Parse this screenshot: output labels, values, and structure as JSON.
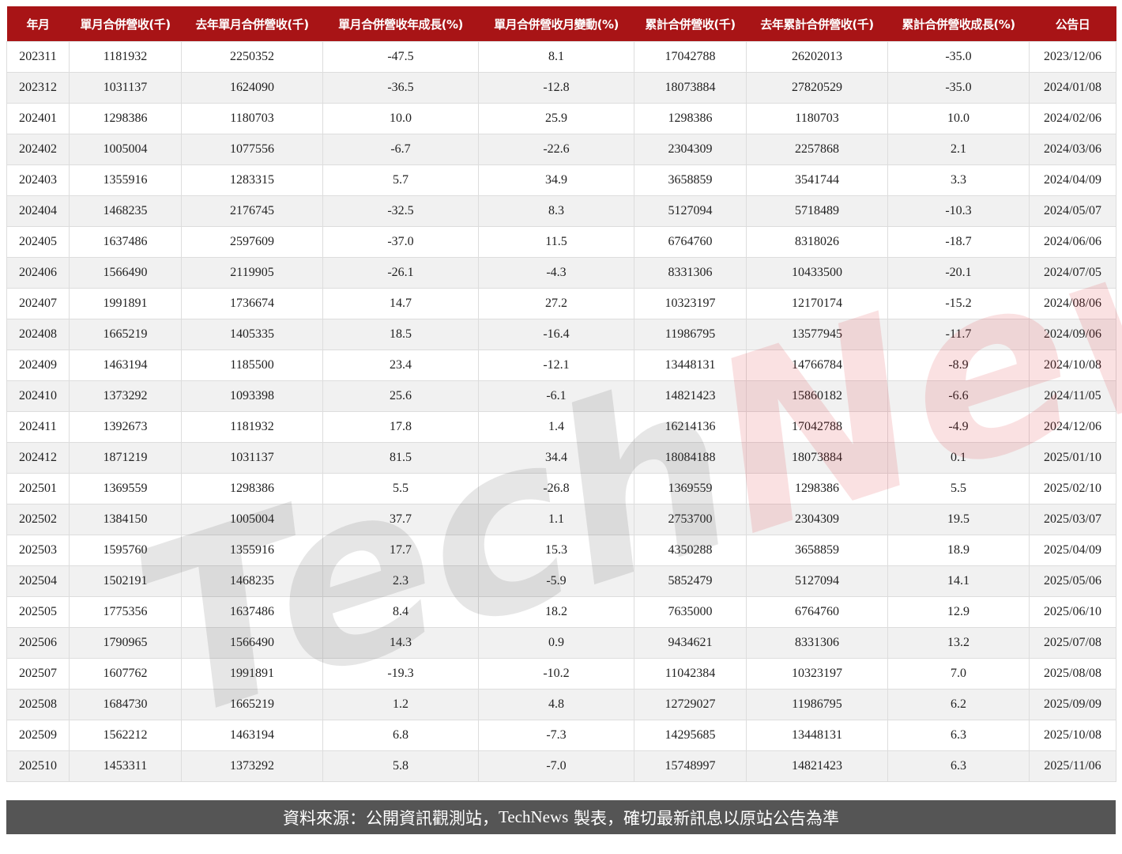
{
  "chart_data": {
    "type": "table",
    "columns": [
      "年月",
      "單月合併營收(千)",
      "去年單月合併營收(千)",
      "單月合併營收年成長(%)",
      "單月合併營收月變動(%)",
      "累計合併營收(千)",
      "去年累計合併營收(千)",
      "累計合併營收成長(%)",
      "公告日"
    ],
    "rows": [
      [
        "202311",
        "1181932",
        "2250352",
        "-47.5",
        "8.1",
        "17042788",
        "26202013",
        "-35.0",
        "2023/12/06"
      ],
      [
        "202312",
        "1031137",
        "1624090",
        "-36.5",
        "-12.8",
        "18073884",
        "27820529",
        "-35.0",
        "2024/01/08"
      ],
      [
        "202401",
        "1298386",
        "1180703",
        "10.0",
        "25.9",
        "1298386",
        "1180703",
        "10.0",
        "2024/02/06"
      ],
      [
        "202402",
        "1005004",
        "1077556",
        "-6.7",
        "-22.6",
        "2304309",
        "2257868",
        "2.1",
        "2024/03/06"
      ],
      [
        "202403",
        "1355916",
        "1283315",
        "5.7",
        "34.9",
        "3658859",
        "3541744",
        "3.3",
        "2024/04/09"
      ],
      [
        "202404",
        "1468235",
        "2176745",
        "-32.5",
        "8.3",
        "5127094",
        "5718489",
        "-10.3",
        "2024/05/07"
      ],
      [
        "202405",
        "1637486",
        "2597609",
        "-37.0",
        "11.5",
        "6764760",
        "8318026",
        "-18.7",
        "2024/06/06"
      ],
      [
        "202406",
        "1566490",
        "2119905",
        "-26.1",
        "-4.3",
        "8331306",
        "10433500",
        "-20.1",
        "2024/07/05"
      ],
      [
        "202407",
        "1991891",
        "1736674",
        "14.7",
        "27.2",
        "10323197",
        "12170174",
        "-15.2",
        "2024/08/06"
      ],
      [
        "202408",
        "1665219",
        "1405335",
        "18.5",
        "-16.4",
        "11986795",
        "13577945",
        "-11.7",
        "2024/09/06"
      ],
      [
        "202409",
        "1463194",
        "1185500",
        "23.4",
        "-12.1",
        "13448131",
        "14766784",
        "-8.9",
        "2024/10/08"
      ],
      [
        "202410",
        "1373292",
        "1093398",
        "25.6",
        "-6.1",
        "14821423",
        "15860182",
        "-6.6",
        "2024/11/05"
      ],
      [
        "202411",
        "1392673",
        "1181932",
        "17.8",
        "1.4",
        "16214136",
        "17042788",
        "-4.9",
        "2024/12/06"
      ],
      [
        "202412",
        "1871219",
        "1031137",
        "81.5",
        "34.4",
        "18084188",
        "18073884",
        "0.1",
        "2025/01/10"
      ],
      [
        "202501",
        "1369559",
        "1298386",
        "5.5",
        "-26.8",
        "1369559",
        "1298386",
        "5.5",
        "2025/02/10"
      ],
      [
        "202502",
        "1384150",
        "1005004",
        "37.7",
        "1.1",
        "2753700",
        "2304309",
        "19.5",
        "2025/03/07"
      ],
      [
        "202503",
        "1595760",
        "1355916",
        "17.7",
        "15.3",
        "4350288",
        "3658859",
        "18.9",
        "2025/04/09"
      ],
      [
        "202504",
        "1502191",
        "1468235",
        "2.3",
        "-5.9",
        "5852479",
        "5127094",
        "14.1",
        "2025/05/06"
      ],
      [
        "202505",
        "1775356",
        "1637486",
        "8.4",
        "18.2",
        "7635000",
        "6764760",
        "12.9",
        "2025/06/10"
      ],
      [
        "202506",
        "1790965",
        "1566490",
        "14.3",
        "0.9",
        "9434621",
        "8331306",
        "13.2",
        "2025/07/08"
      ],
      [
        "202507",
        "1607762",
        "1991891",
        "-19.3",
        "-10.2",
        "11042384",
        "10323197",
        "7.0",
        "2025/08/08"
      ],
      [
        "202508",
        "1684730",
        "1665219",
        "1.2",
        "4.8",
        "12729027",
        "11986795",
        "6.2",
        "2025/09/09"
      ],
      [
        "202509",
        "1562212",
        "1463194",
        "6.8",
        "-7.3",
        "14295685",
        "13448131",
        "6.3",
        "2025/10/08"
      ],
      [
        "202510",
        "1453311",
        "1373292",
        "5.8",
        "-7.0",
        "15748997",
        "14821423",
        "6.3",
        "2025/11/06"
      ]
    ]
  },
  "footer": {
    "text_pre": "資料來源：公開資訊觀測站，",
    "text_brand": "TechNews",
    "text_post": " 製表，確切最新訊息以原站公告為準"
  },
  "watermark": {
    "part1": "Tech",
    "part2": "News"
  },
  "colors": {
    "header_bg": "#a81416",
    "footer_bg": "#555555",
    "row_alt": "#f1f1f1"
  }
}
